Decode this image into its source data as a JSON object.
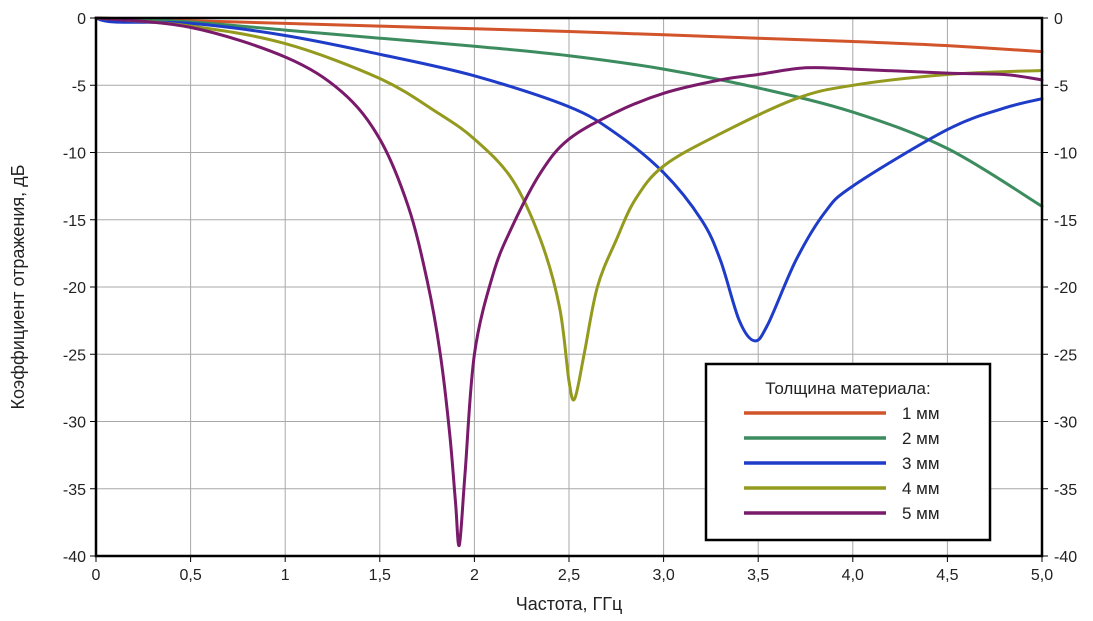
{
  "chart_data": {
    "type": "line",
    "xlabel": "Частота, ГГц",
    "ylabel": "Коэффициент отражения, дБ",
    "xlim": [
      0,
      5
    ],
    "ylim": [
      -40,
      0
    ],
    "grid": true,
    "x_ticks": [
      0,
      0.5,
      1,
      1.5,
      2,
      2.5,
      3,
      3.5,
      4,
      4.5,
      5
    ],
    "x_tick_labels": [
      "0",
      "0,5",
      "1",
      "1,5",
      "2",
      "2,5",
      "3,0",
      "3,5",
      "4,0",
      "4,5",
      "5,0"
    ],
    "y_ticks": [
      0,
      -5,
      -10,
      -15,
      -20,
      -25,
      -30,
      -35,
      -40
    ],
    "y_tick_labels": [
      "0",
      "-5",
      "-10",
      "-15",
      "-20",
      "-25",
      "-30",
      "-35",
      "-40"
    ],
    "legend": {
      "title": "Толщина материала:",
      "placement": "bottom-right"
    },
    "series": [
      {
        "name": "1 мм",
        "color": "#d2542a",
        "points": [
          [
            0,
            0
          ],
          [
            0.5,
            -0.2
          ],
          [
            1,
            -0.4
          ],
          [
            1.5,
            -0.6
          ],
          [
            2,
            -0.8
          ],
          [
            2.5,
            -1.0
          ],
          [
            3,
            -1.25
          ],
          [
            3.5,
            -1.5
          ],
          [
            4,
            -1.75
          ],
          [
            4.5,
            -2.05
          ],
          [
            5,
            -2.5
          ]
        ]
      },
      {
        "name": "2 мм",
        "color": "#3c8c5f",
        "points": [
          [
            0,
            0
          ],
          [
            0.5,
            -0.3
          ],
          [
            1,
            -0.9
          ],
          [
            1.5,
            -1.5
          ],
          [
            2,
            -2.1
          ],
          [
            2.5,
            -2.8
          ],
          [
            3,
            -3.8
          ],
          [
            3.5,
            -5.2
          ],
          [
            4,
            -7.0
          ],
          [
            4.5,
            -9.7
          ],
          [
            5,
            -14.0
          ]
        ]
      },
      {
        "name": "3 мм",
        "color": "#1e3cc8",
        "points": [
          [
            0,
            0
          ],
          [
            0.1,
            -0.3
          ],
          [
            0.5,
            -0.4
          ],
          [
            1,
            -1.3
          ],
          [
            1.5,
            -2.7
          ],
          [
            2,
            -4.3
          ],
          [
            2.5,
            -6.6
          ],
          [
            2.75,
            -8.6
          ],
          [
            3,
            -11.5
          ],
          [
            3.2,
            -15.0
          ],
          [
            3.3,
            -18.0
          ],
          [
            3.4,
            -22.5
          ],
          [
            3.48,
            -24.0
          ],
          [
            3.55,
            -22.8
          ],
          [
            3.7,
            -18.0
          ],
          [
            3.85,
            -14.5
          ],
          [
            4,
            -12.5
          ],
          [
            4.5,
            -8.3
          ],
          [
            4.8,
            -6.7
          ],
          [
            5,
            -6.0
          ]
        ]
      },
      {
        "name": "4 мм",
        "color": "#949a1e",
        "points": [
          [
            0,
            0
          ],
          [
            0.5,
            -0.6
          ],
          [
            1,
            -1.9
          ],
          [
            1.5,
            -4.5
          ],
          [
            1.8,
            -7.0
          ],
          [
            2,
            -9.0
          ],
          [
            2.2,
            -12.0
          ],
          [
            2.35,
            -16.5
          ],
          [
            2.45,
            -21.5
          ],
          [
            2.5,
            -27.0
          ],
          [
            2.53,
            -28.3
          ],
          [
            2.58,
            -25.0
          ],
          [
            2.65,
            -20.0
          ],
          [
            2.75,
            -16.5
          ],
          [
            2.85,
            -13.5
          ],
          [
            3,
            -11.0
          ],
          [
            3.3,
            -8.6
          ],
          [
            3.7,
            -6.0
          ],
          [
            4,
            -5.0
          ],
          [
            4.5,
            -4.2
          ],
          [
            5,
            -3.9
          ]
        ]
      },
      {
        "name": "5 мм",
        "color": "#7a1a6a",
        "points": [
          [
            0,
            0
          ],
          [
            0.5,
            -0.7
          ],
          [
            1,
            -2.9
          ],
          [
            1.3,
            -5.5
          ],
          [
            1.5,
            -9.0
          ],
          [
            1.65,
            -14.0
          ],
          [
            1.75,
            -19.5
          ],
          [
            1.82,
            -25.0
          ],
          [
            1.87,
            -31.0
          ],
          [
            1.9,
            -36.0
          ],
          [
            1.92,
            -39.2
          ],
          [
            1.95,
            -34.0
          ],
          [
            2,
            -25.0
          ],
          [
            2.1,
            -19.0
          ],
          [
            2.2,
            -15.5
          ],
          [
            2.35,
            -11.5
          ],
          [
            2.5,
            -9.0
          ],
          [
            2.75,
            -7.0
          ],
          [
            3,
            -5.6
          ],
          [
            3.3,
            -4.6
          ],
          [
            3.5,
            -4.2
          ],
          [
            3.75,
            -3.7
          ],
          [
            4,
            -3.8
          ],
          [
            4.5,
            -4.1
          ],
          [
            4.8,
            -4.2
          ],
          [
            5,
            -4.6
          ]
        ]
      }
    ]
  }
}
